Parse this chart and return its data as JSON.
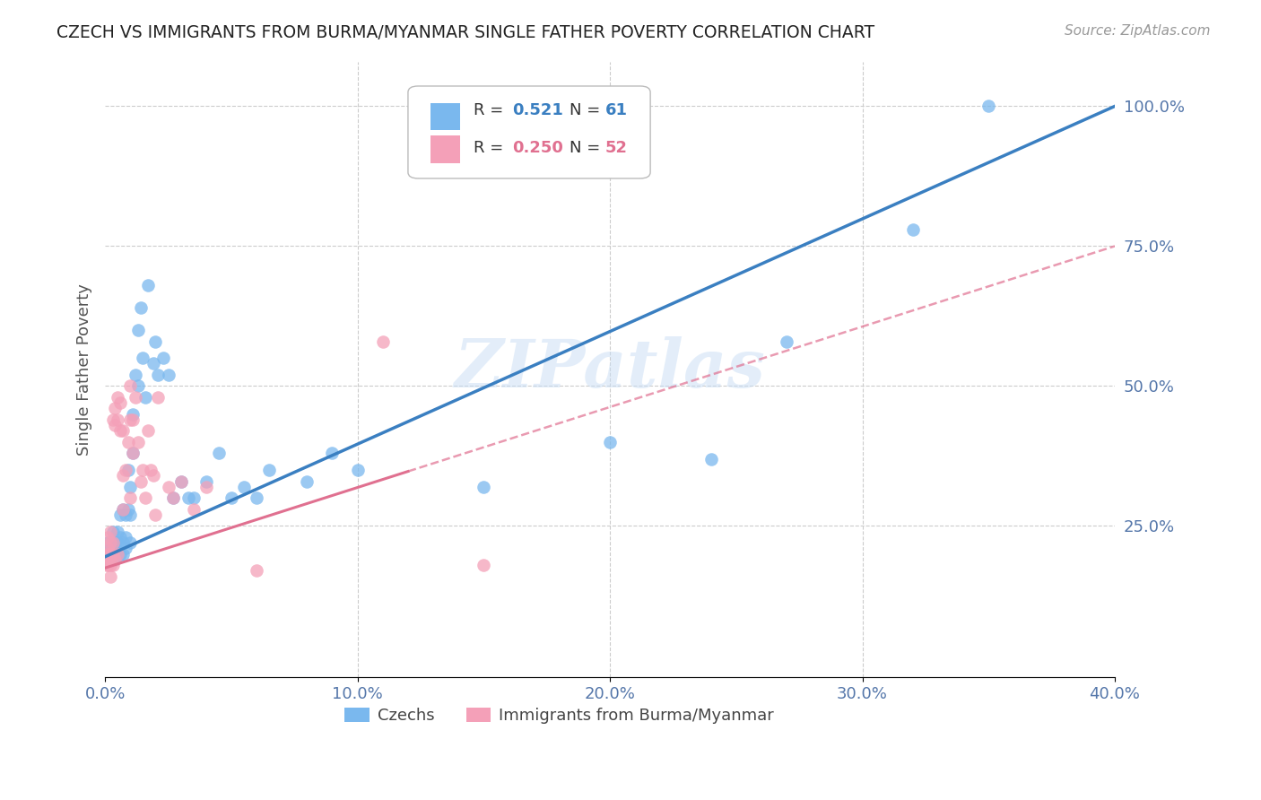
{
  "title": "CZECH VS IMMIGRANTS FROM BURMA/MYANMAR SINGLE FATHER POVERTY CORRELATION CHART",
  "source": "Source: ZipAtlas.com",
  "ylabel": "Single Father Poverty",
  "right_yticks": [
    "100.0%",
    "75.0%",
    "50.0%",
    "25.0%"
  ],
  "right_ytick_vals": [
    1.0,
    0.75,
    0.5,
    0.25
  ],
  "xlim": [
    0.0,
    0.4
  ],
  "ylim": [
    -0.02,
    1.08
  ],
  "watermark": "ZIPatlas",
  "color_czech": "#7ab8ee",
  "color_burma": "#f4a0b8",
  "color_czech_line": "#3a7fc1",
  "color_burma_line": "#e07090",
  "background": "#ffffff",
  "grid_color": "#cccccc",
  "czech_x": [
    0.001,
    0.001,
    0.002,
    0.002,
    0.003,
    0.003,
    0.003,
    0.004,
    0.004,
    0.004,
    0.005,
    0.005,
    0.005,
    0.006,
    0.006,
    0.006,
    0.007,
    0.007,
    0.007,
    0.008,
    0.008,
    0.008,
    0.009,
    0.009,
    0.01,
    0.01,
    0.01,
    0.011,
    0.011,
    0.012,
    0.013,
    0.013,
    0.014,
    0.015,
    0.016,
    0.017,
    0.019,
    0.02,
    0.021,
    0.023,
    0.025,
    0.027,
    0.03,
    0.033,
    0.035,
    0.04,
    0.045,
    0.05,
    0.055,
    0.06,
    0.065,
    0.08,
    0.09,
    0.1,
    0.15,
    0.16,
    0.2,
    0.24,
    0.27,
    0.32,
    0.35
  ],
  "czech_y": [
    0.19,
    0.22,
    0.19,
    0.21,
    0.19,
    0.22,
    0.24,
    0.19,
    0.22,
    0.21,
    0.2,
    0.22,
    0.24,
    0.2,
    0.23,
    0.27,
    0.2,
    0.22,
    0.28,
    0.21,
    0.23,
    0.27,
    0.28,
    0.35,
    0.22,
    0.27,
    0.32,
    0.38,
    0.45,
    0.52,
    0.5,
    0.6,
    0.64,
    0.55,
    0.48,
    0.68,
    0.54,
    0.58,
    0.52,
    0.55,
    0.52,
    0.3,
    0.33,
    0.3,
    0.3,
    0.33,
    0.38,
    0.3,
    0.32,
    0.3,
    0.35,
    0.33,
    0.38,
    0.35,
    0.32,
    0.98,
    0.4,
    0.37,
    0.58,
    0.78,
    1.0
  ],
  "burma_x": [
    0.0005,
    0.0005,
    0.001,
    0.001,
    0.001,
    0.001,
    0.001,
    0.002,
    0.002,
    0.002,
    0.002,
    0.002,
    0.003,
    0.003,
    0.003,
    0.003,
    0.004,
    0.004,
    0.004,
    0.005,
    0.005,
    0.005,
    0.006,
    0.006,
    0.007,
    0.007,
    0.007,
    0.008,
    0.009,
    0.01,
    0.01,
    0.01,
    0.011,
    0.011,
    0.012,
    0.013,
    0.014,
    0.015,
    0.016,
    0.017,
    0.018,
    0.019,
    0.02,
    0.021,
    0.025,
    0.027,
    0.03,
    0.035,
    0.04,
    0.06,
    0.11,
    0.15
  ],
  "burma_y": [
    0.18,
    0.2,
    0.18,
    0.2,
    0.19,
    0.21,
    0.23,
    0.18,
    0.2,
    0.22,
    0.16,
    0.24,
    0.18,
    0.2,
    0.22,
    0.44,
    0.19,
    0.43,
    0.46,
    0.2,
    0.44,
    0.48,
    0.42,
    0.47,
    0.28,
    0.34,
    0.42,
    0.35,
    0.4,
    0.3,
    0.44,
    0.5,
    0.38,
    0.44,
    0.48,
    0.4,
    0.33,
    0.35,
    0.3,
    0.42,
    0.35,
    0.34,
    0.27,
    0.48,
    0.32,
    0.3,
    0.33,
    0.28,
    0.32,
    0.17,
    0.58,
    0.18
  ]
}
